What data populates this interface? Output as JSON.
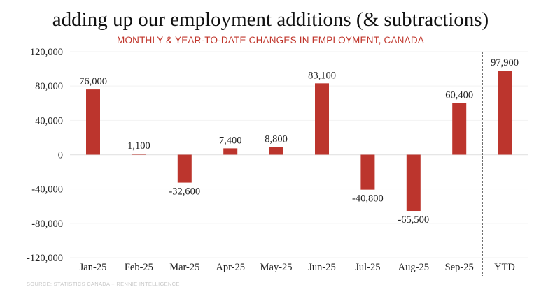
{
  "chart_data": {
    "type": "bar",
    "title": "adding up our employment additions (& subtractions)",
    "subtitle": "MONTHLY & YEAR-TO-DATE CHANGES IN EMPLOYMENT, CANADA",
    "source": "SOURCE: STATISTICS CANADA + RENNIE INTELLIGENCE",
    "xlabel": "",
    "ylabel": "",
    "categories": [
      "Jan-25",
      "Feb-25",
      "Mar-25",
      "Apr-25",
      "May-25",
      "Jun-25",
      "Jul-25",
      "Aug-25",
      "Sep-25",
      "YTD"
    ],
    "values": [
      76000,
      1100,
      -32600,
      7400,
      8800,
      83100,
      -40800,
      -65500,
      60400,
      97900
    ],
    "data_labels": [
      "76,000",
      "1,100",
      "-32,600",
      "7,400",
      "8,800",
      "83,100",
      "-40,800",
      "-65,500",
      "60,400",
      "97,900"
    ],
    "ylim": [
      -120000,
      120000
    ],
    "yticks": [
      120000,
      80000,
      40000,
      0,
      -40000,
      -80000,
      -120000
    ],
    "ytick_labels": [
      "120,000",
      "80,000",
      "40,000",
      "0",
      "-40,000",
      "-80,000",
      "-120,000"
    ],
    "grid": true,
    "legend": "none",
    "bar_color": "#bc352d",
    "divider_before": "YTD"
  }
}
